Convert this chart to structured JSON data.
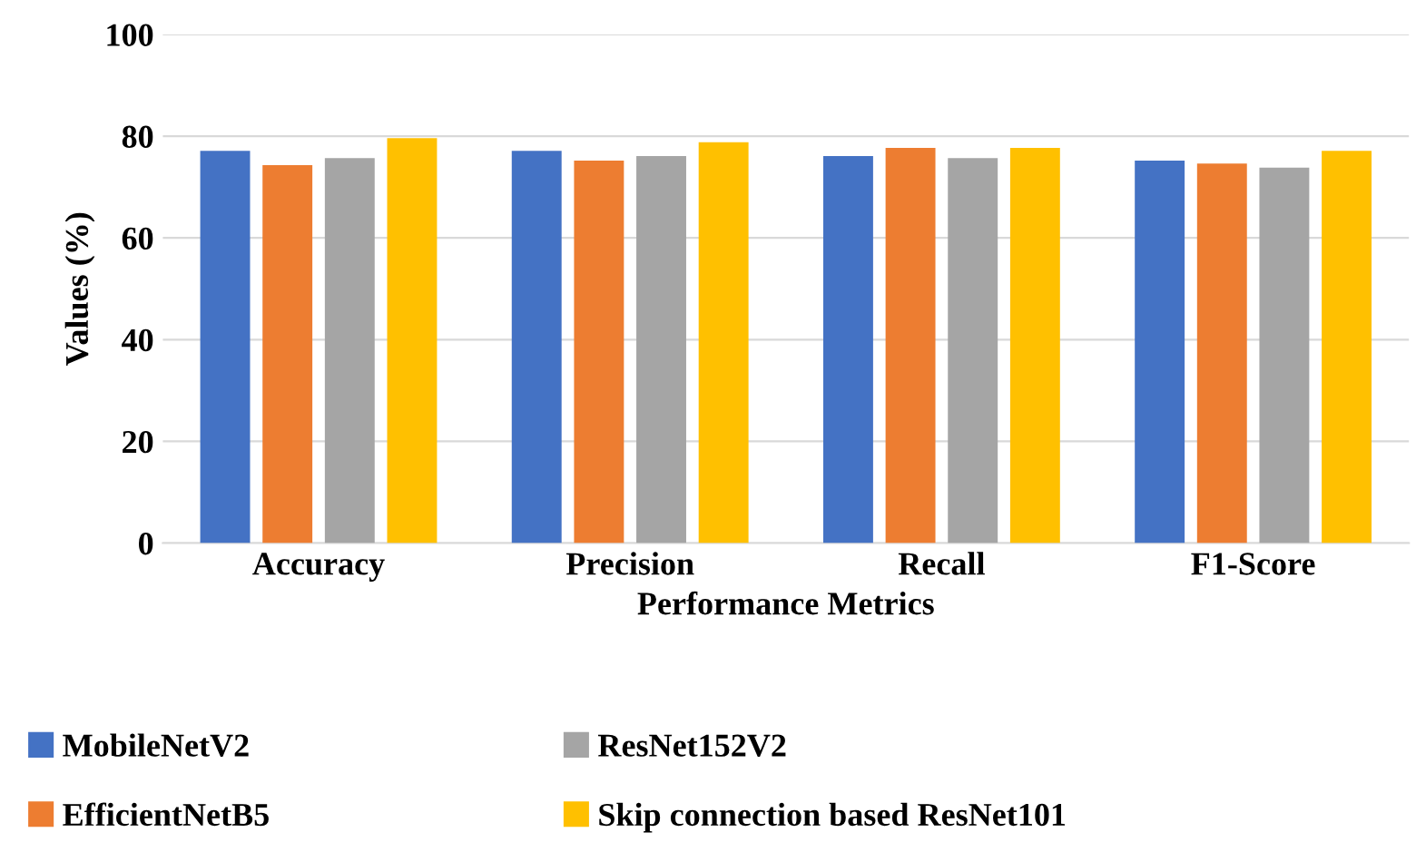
{
  "chart_data": {
    "type": "bar",
    "xlabel": "Performance Metrics",
    "ylabel": "Values (%)",
    "categories": [
      "Accuracy",
      "Precision",
      "Recall",
      "F1-Score"
    ],
    "series": [
      {
        "name": "MobileNetV2",
        "color": "#4472c4",
        "values": [
          77.1,
          77.1,
          76.1,
          75.2
        ]
      },
      {
        "name": "EfficientNetB5",
        "color": "#ed7d31",
        "values": [
          74.3,
          75.2,
          77.7,
          74.6
        ]
      },
      {
        "name": "ResNet152V2",
        "color": "#a5a5a5",
        "values": [
          75.7,
          76.1,
          75.7,
          73.8
        ]
      },
      {
        "name": "Skip connection based ResNet101",
        "color": "#ffc000",
        "values": [
          79.6,
          78.8,
          77.7,
          77.1
        ]
      }
    ],
    "ylim": [
      0,
      100
    ],
    "yticks": [
      0,
      20,
      40,
      60,
      80,
      100
    ],
    "grid": "y",
    "legend": "bottom"
  }
}
